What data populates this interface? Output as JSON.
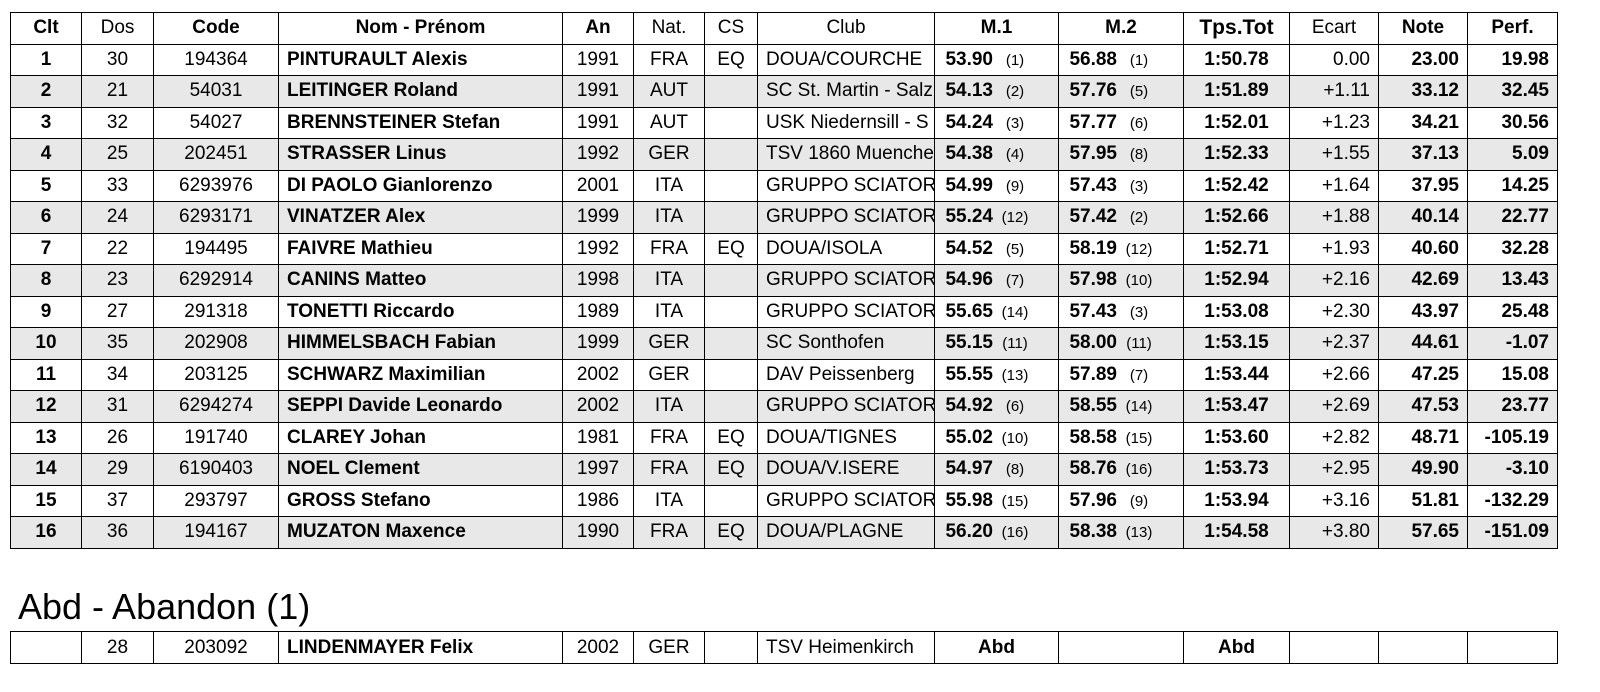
{
  "headers": {
    "clt": "Clt",
    "dos": "Dos",
    "code": "Code",
    "nom": "Nom - Prénom",
    "an": "An",
    "nat": "Nat.",
    "cs": "CS",
    "club": "Club",
    "m1": "M.1",
    "m2": "M.2",
    "tps": "Tps.Tot",
    "ecart": "Ecart",
    "note": "Note",
    "perf": "Perf."
  },
  "results": [
    {
      "clt": "1",
      "dos": "30",
      "code": "194364",
      "nom": "PINTURAULT Alexis",
      "an": "1991",
      "nat": "FRA",
      "cs": "EQ",
      "club": "DOUA/COURCHE",
      "m1": "53.90",
      "m1r": "(1)",
      "m2": "56.88",
      "m2r": "(1)",
      "tps": "1:50.78",
      "ecart": "0.00",
      "note": "23.00",
      "perf": "19.98"
    },
    {
      "clt": "2",
      "dos": "21",
      "code": "54031",
      "nom": "LEITINGER Roland",
      "an": "1991",
      "nat": "AUT",
      "cs": "",
      "club": "SC St. Martin - Salz",
      "m1": "54.13",
      "m1r": "(2)",
      "m2": "57.76",
      "m2r": "(5)",
      "tps": "1:51.89",
      "ecart": "+1.11",
      "note": "33.12",
      "perf": "32.45"
    },
    {
      "clt": "3",
      "dos": "32",
      "code": "54027",
      "nom": "BRENNSTEINER Stefan",
      "an": "1991",
      "nat": "AUT",
      "cs": "",
      "club": "USK Niedernsill - S",
      "m1": "54.24",
      "m1r": "(3)",
      "m2": "57.77",
      "m2r": "(6)",
      "tps": "1:52.01",
      "ecart": "+1.23",
      "note": "34.21",
      "perf": "30.56"
    },
    {
      "clt": "4",
      "dos": "25",
      "code": "202451",
      "nom": "STRASSER Linus",
      "an": "1992",
      "nat": "GER",
      "cs": "",
      "club": "TSV 1860 Muenche",
      "m1": "54.38",
      "m1r": "(4)",
      "m2": "57.95",
      "m2r": "(8)",
      "tps": "1:52.33",
      "ecart": "+1.55",
      "note": "37.13",
      "perf": "5.09"
    },
    {
      "clt": "5",
      "dos": "33",
      "code": "6293976",
      "nom": "DI PAOLO Gianlorenzo",
      "an": "2001",
      "nat": "ITA",
      "cs": "",
      "club": "GRUPPO SCIATORI",
      "m1": "54.99",
      "m1r": "(9)",
      "m2": "57.43",
      "m2r": "(3)",
      "tps": "1:52.42",
      "ecart": "+1.64",
      "note": "37.95",
      "perf": "14.25"
    },
    {
      "clt": "6",
      "dos": "24",
      "code": "6293171",
      "nom": "VINATZER Alex",
      "an": "1999",
      "nat": "ITA",
      "cs": "",
      "club": "GRUPPO SCIATORI",
      "m1": "55.24",
      "m1r": "(12)",
      "m2": "57.42",
      "m2r": "(2)",
      "tps": "1:52.66",
      "ecart": "+1.88",
      "note": "40.14",
      "perf": "22.77"
    },
    {
      "clt": "7",
      "dos": "22",
      "code": "194495",
      "nom": "FAIVRE Mathieu",
      "an": "1992",
      "nat": "FRA",
      "cs": "EQ",
      "club": "DOUA/ISOLA",
      "m1": "54.52",
      "m1r": "(5)",
      "m2": "58.19",
      "m2r": "(12)",
      "tps": "1:52.71",
      "ecart": "+1.93",
      "note": "40.60",
      "perf": "32.28"
    },
    {
      "clt": "8",
      "dos": "23",
      "code": "6292914",
      "nom": "CANINS Matteo",
      "an": "1998",
      "nat": "ITA",
      "cs": "",
      "club": "GRUPPO SCIATORI",
      "m1": "54.96",
      "m1r": "(7)",
      "m2": "57.98",
      "m2r": "(10)",
      "tps": "1:52.94",
      "ecart": "+2.16",
      "note": "42.69",
      "perf": "13.43"
    },
    {
      "clt": "9",
      "dos": "27",
      "code": "291318",
      "nom": "TONETTI Riccardo",
      "an": "1989",
      "nat": "ITA",
      "cs": "",
      "club": "GRUPPO SCIATORI",
      "m1": "55.65",
      "m1r": "(14)",
      "m2": "57.43",
      "m2r": "(3)",
      "tps": "1:53.08",
      "ecart": "+2.30",
      "note": "43.97",
      "perf": "25.48"
    },
    {
      "clt": "10",
      "dos": "35",
      "code": "202908",
      "nom": "HIMMELSBACH Fabian",
      "an": "1999",
      "nat": "GER",
      "cs": "",
      "club": "SC Sonthofen",
      "m1": "55.15",
      "m1r": "(11)",
      "m2": "58.00",
      "m2r": "(11)",
      "tps": "1:53.15",
      "ecart": "+2.37",
      "note": "44.61",
      "perf": "-1.07"
    },
    {
      "clt": "11",
      "dos": "34",
      "code": "203125",
      "nom": "SCHWARZ Maximilian",
      "an": "2002",
      "nat": "GER",
      "cs": "",
      "club": "DAV Peissenberg",
      "m1": "55.55",
      "m1r": "(13)",
      "m2": "57.89",
      "m2r": "(7)",
      "tps": "1:53.44",
      "ecart": "+2.66",
      "note": "47.25",
      "perf": "15.08"
    },
    {
      "clt": "12",
      "dos": "31",
      "code": "6294274",
      "nom": "SEPPI Davide Leonardo",
      "an": "2002",
      "nat": "ITA",
      "cs": "",
      "club": "GRUPPO SCIATORI",
      "m1": "54.92",
      "m1r": "(6)",
      "m2": "58.55",
      "m2r": "(14)",
      "tps": "1:53.47",
      "ecart": "+2.69",
      "note": "47.53",
      "perf": "23.77"
    },
    {
      "clt": "13",
      "dos": "26",
      "code": "191740",
      "nom": "CLAREY Johan",
      "an": "1981",
      "nat": "FRA",
      "cs": "EQ",
      "club": "DOUA/TIGNES",
      "m1": "55.02",
      "m1r": "(10)",
      "m2": "58.58",
      "m2r": "(15)",
      "tps": "1:53.60",
      "ecart": "+2.82",
      "note": "48.71",
      "perf": "-105.19"
    },
    {
      "clt": "14",
      "dos": "29",
      "code": "6190403",
      "nom": "NOEL Clement",
      "an": "1997",
      "nat": "FRA",
      "cs": "EQ",
      "club": "DOUA/V.ISERE",
      "m1": "54.97",
      "m1r": "(8)",
      "m2": "58.76",
      "m2r": "(16)",
      "tps": "1:53.73",
      "ecart": "+2.95",
      "note": "49.90",
      "perf": "-3.10"
    },
    {
      "clt": "15",
      "dos": "37",
      "code": "293797",
      "nom": "GROSS Stefano",
      "an": "1986",
      "nat": "ITA",
      "cs": "",
      "club": "GRUPPO SCIATORI",
      "m1": "55.98",
      "m1r": "(15)",
      "m2": "57.96",
      "m2r": "(9)",
      "tps": "1:53.94",
      "ecart": "+3.16",
      "note": "51.81",
      "perf": "-132.29"
    },
    {
      "clt": "16",
      "dos": "36",
      "code": "194167",
      "nom": "MUZATON Maxence",
      "an": "1990",
      "nat": "FRA",
      "cs": "EQ",
      "club": "DOUA/PLAGNE",
      "m1": "56.20",
      "m1r": "(16)",
      "m2": "58.38",
      "m2r": "(13)",
      "tps": "1:54.58",
      "ecart": "+3.80",
      "note": "57.65",
      "perf": "-151.09"
    }
  ],
  "abandon": {
    "title": "Abd - Abandon (1)",
    "row": {
      "dos": "28",
      "code": "203092",
      "nom": "LINDENMAYER Felix",
      "an": "2002",
      "nat": "GER",
      "club": "TSV Heimenkirch",
      "m1": "Abd",
      "tps": "Abd"
    }
  }
}
